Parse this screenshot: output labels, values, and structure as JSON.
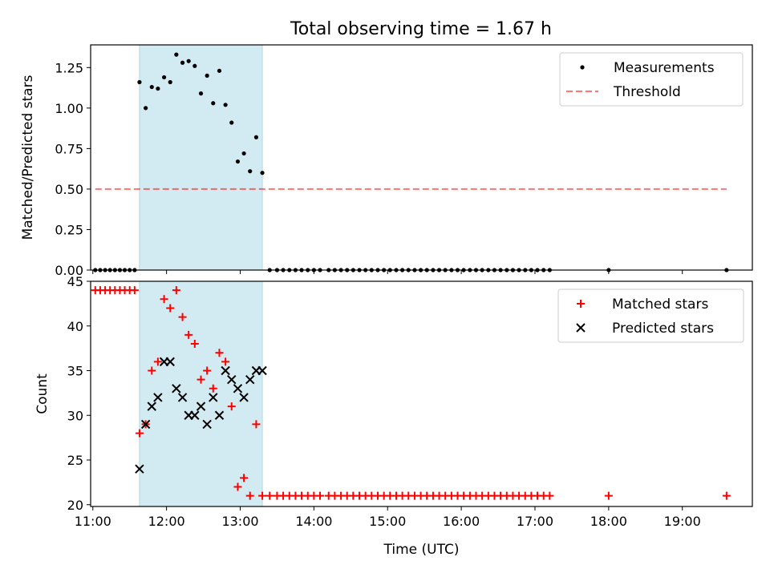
{
  "figure": {
    "title": "Total observing time = 1.67 h"
  },
  "colors": {
    "measure": "#000000",
    "threshold": "#ff0000",
    "matched": "#ff0000",
    "predicted": "#000000",
    "shade": "#add8e6"
  },
  "chart_data": [
    {
      "type": "scatter",
      "xlabel": "",
      "ylabel": "Matched/Predicted stars",
      "xlim": [
        10.97,
        19.95
      ],
      "ylim": [
        0,
        1.39
      ],
      "yticks": [
        0,
        0.25,
        0.5,
        0.75,
        1.0,
        1.25
      ],
      "ytick_labels": [
        "0.00",
        "0.25",
        "0.50",
        "0.75",
        "1.00",
        "1.25"
      ],
      "xtick_labels": [
        "",
        "",
        "",
        "",
        "",
        "",
        "",
        "",
        ""
      ],
      "shaded_span": [
        11.633,
        13.3
      ],
      "legend": {
        "position": "top-right",
        "entries": [
          "Measurements",
          "Threshold"
        ]
      },
      "series": [
        {
          "name": "Measurements",
          "marker": "dot",
          "x": [
            11.033,
            11.1,
            11.167,
            11.233,
            11.3,
            11.367,
            11.433,
            11.5,
            11.567,
            11.633,
            11.717,
            11.8,
            11.883,
            11.967,
            12.05,
            12.133,
            12.217,
            12.3,
            12.383,
            12.467,
            12.55,
            12.633,
            12.717,
            12.8,
            12.883,
            12.967,
            13.05,
            13.133,
            13.217,
            13.3,
            13.4,
            13.5,
            13.583,
            13.667,
            13.75,
            13.833,
            13.917,
            14.0,
            14.083,
            14.2,
            14.283,
            14.367,
            14.45,
            14.533,
            14.617,
            14.7,
            14.783,
            14.867,
            14.95,
            15.033,
            15.117,
            15.2,
            15.283,
            15.367,
            15.45,
            15.533,
            15.617,
            15.7,
            15.783,
            15.867,
            15.95,
            16.033,
            16.117,
            16.2,
            16.283,
            16.367,
            16.45,
            16.533,
            16.617,
            16.7,
            16.783,
            16.867,
            16.95,
            17.033,
            17.117,
            17.2,
            18.0,
            19.6
          ],
          "y": [
            0,
            0,
            0,
            0,
            0,
            0,
            0,
            0,
            0,
            1.16,
            1.0,
            1.13,
            1.12,
            1.19,
            1.16,
            1.33,
            1.28,
            1.29,
            1.26,
            1.09,
            1.2,
            1.03,
            1.23,
            1.02,
            0.91,
            0.67,
            0.72,
            0.61,
            0.82,
            0.6,
            0,
            0,
            0,
            0,
            0,
            0,
            0,
            0,
            0,
            0,
            0,
            0,
            0,
            0,
            0,
            0,
            0,
            0,
            0,
            0,
            0,
            0,
            0,
            0,
            0,
            0,
            0,
            0,
            0,
            0,
            0,
            0,
            0,
            0,
            0,
            0,
            0,
            0,
            0,
            0,
            0,
            0,
            0,
            0,
            0,
            0,
            0,
            0
          ]
        },
        {
          "name": "Threshold",
          "marker": "dashed-line",
          "x": [
            11.033,
            19.6
          ],
          "y": [
            0.5,
            0.5
          ]
        }
      ]
    },
    {
      "type": "scatter",
      "xlabel": "Time (UTC)",
      "ylabel": "Count",
      "xlim": [
        10.97,
        19.95
      ],
      "ylim": [
        19.8,
        45
      ],
      "yticks": [
        20,
        25,
        30,
        35,
        40,
        45
      ],
      "ytick_labels": [
        "20",
        "25",
        "30",
        "35",
        "40",
        "45"
      ],
      "xticks": [
        11,
        12,
        13,
        14,
        15,
        16,
        17,
        18,
        19
      ],
      "xtick_labels": [
        "11:00",
        "12:00",
        "13:00",
        "14:00",
        "15:00",
        "16:00",
        "17:00",
        "18:00",
        "19:00"
      ],
      "shaded_span": [
        11.633,
        13.3
      ],
      "legend": {
        "position": "top-right",
        "entries": [
          "Matched stars",
          "Predicted stars"
        ]
      },
      "series": [
        {
          "name": "Matched stars",
          "marker": "plus",
          "x": [
            11.033,
            11.1,
            11.167,
            11.233,
            11.3,
            11.367,
            11.433,
            11.5,
            11.567,
            11.633,
            11.717,
            11.8,
            11.883,
            11.967,
            12.05,
            12.133,
            12.217,
            12.3,
            12.383,
            12.467,
            12.55,
            12.633,
            12.717,
            12.8,
            12.883,
            12.967,
            13.05,
            13.133,
            13.217,
            13.3,
            13.4,
            13.5,
            13.583,
            13.667,
            13.75,
            13.833,
            13.917,
            14.0,
            14.083,
            14.2,
            14.283,
            14.367,
            14.45,
            14.533,
            14.617,
            14.7,
            14.783,
            14.867,
            14.95,
            15.033,
            15.117,
            15.2,
            15.283,
            15.367,
            15.45,
            15.533,
            15.617,
            15.7,
            15.783,
            15.867,
            15.95,
            16.033,
            16.117,
            16.2,
            16.283,
            16.367,
            16.45,
            16.533,
            16.617,
            16.7,
            16.783,
            16.867,
            16.95,
            17.033,
            17.117,
            17.2,
            18.0,
            19.6
          ],
          "y": [
            44,
            44,
            44,
            44,
            44,
            44,
            44,
            44,
            44,
            28,
            29,
            35,
            36,
            43,
            42,
            44,
            41,
            39,
            38,
            34,
            35,
            33,
            37,
            36,
            31,
            22,
            23,
            21,
            29,
            21,
            21,
            21,
            21,
            21,
            21,
            21,
            21,
            21,
            21,
            21,
            21,
            21,
            21,
            21,
            21,
            21,
            21,
            21,
            21,
            21,
            21,
            21,
            21,
            21,
            21,
            21,
            21,
            21,
            21,
            21,
            21,
            21,
            21,
            21,
            21,
            21,
            21,
            21,
            21,
            21,
            21,
            21,
            21,
            21,
            21,
            21,
            21,
            21
          ]
        },
        {
          "name": "Predicted stars",
          "marker": "x",
          "x": [
            11.633,
            11.717,
            11.8,
            11.883,
            11.967,
            12.05,
            12.133,
            12.217,
            12.3,
            12.383,
            12.467,
            12.55,
            12.633,
            12.717,
            12.8,
            12.883,
            12.967,
            13.05,
            13.133,
            13.217,
            13.3
          ],
          "y": [
            24,
            29,
            31,
            32,
            36,
            36,
            33,
            32,
            30,
            30,
            31,
            29,
            32,
            30,
            35,
            34,
            33,
            32,
            34,
            35,
            35
          ]
        }
      ]
    }
  ]
}
